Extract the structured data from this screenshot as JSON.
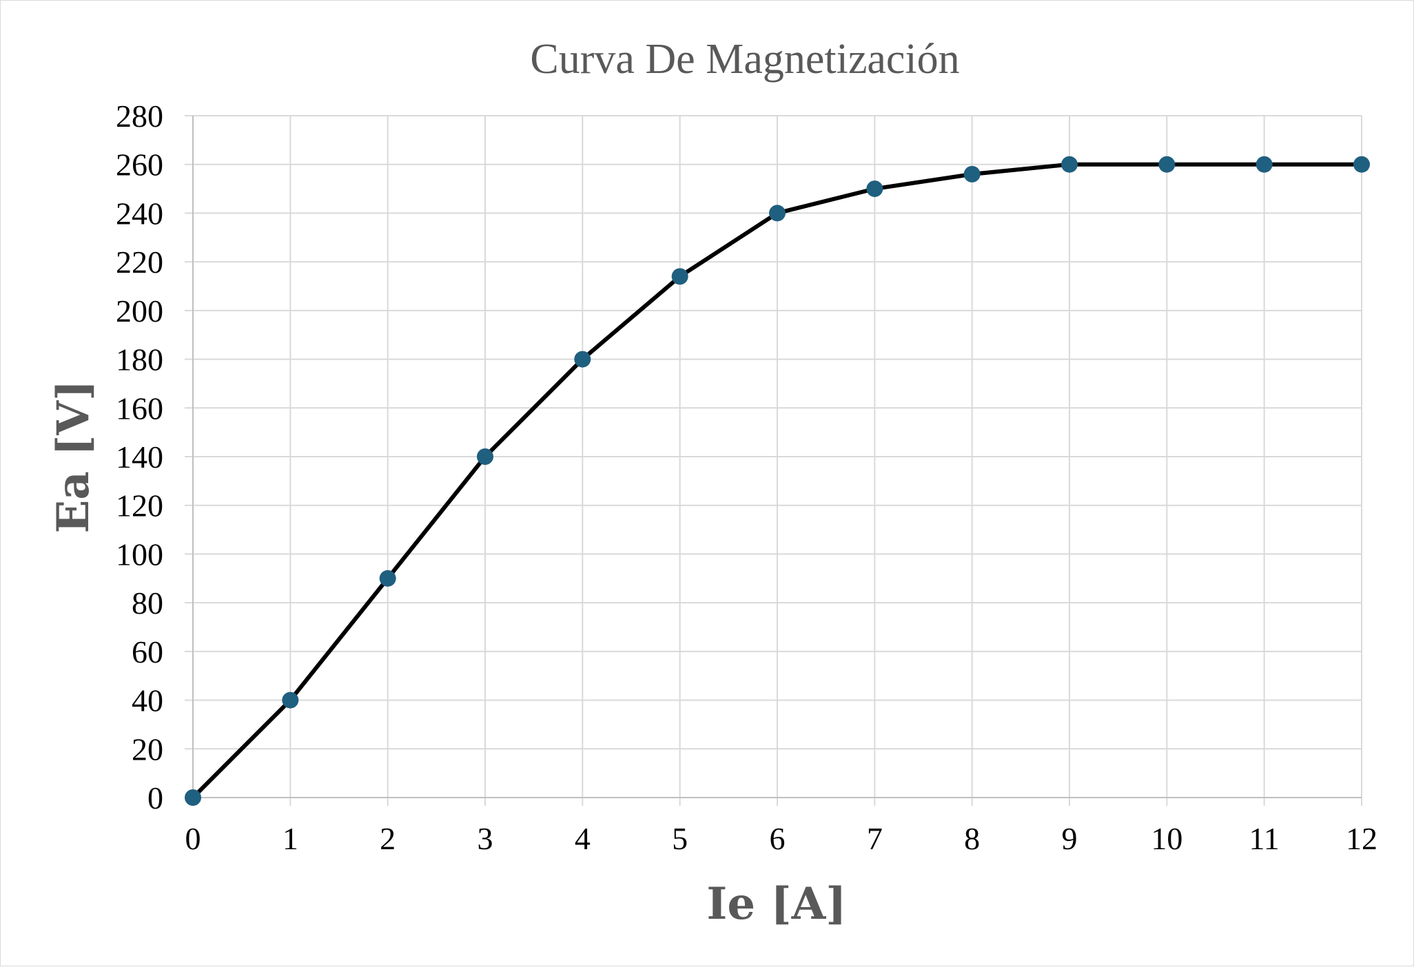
{
  "chart_data": {
    "type": "line",
    "title": "Curva De Magnetización",
    "xlabel": "Ie [A]",
    "ylabel": "Ea [V]",
    "xlim": [
      0,
      12
    ],
    "ylim": [
      0,
      280
    ],
    "x_ticks": [
      "0",
      "1",
      "2",
      "3",
      "4",
      "5",
      "6",
      "7",
      "8",
      "9",
      "10",
      "11",
      "12"
    ],
    "y_ticks": [
      "0",
      "20",
      "40",
      "60",
      "80",
      "100",
      "120",
      "140",
      "160",
      "180",
      "200",
      "220",
      "240",
      "260",
      "280"
    ],
    "grid": true,
    "legend": "none",
    "series": [
      {
        "x": [
          0,
          1,
          2,
          3,
          4,
          5,
          6,
          7,
          8,
          9,
          10,
          11,
          12
        ],
        "values": [
          0,
          40,
          90,
          140,
          180,
          214,
          240,
          250,
          256,
          260,
          260,
          260,
          260
        ],
        "line_color": "#000000",
        "marker_color": "#1f5f7f"
      }
    ]
  }
}
